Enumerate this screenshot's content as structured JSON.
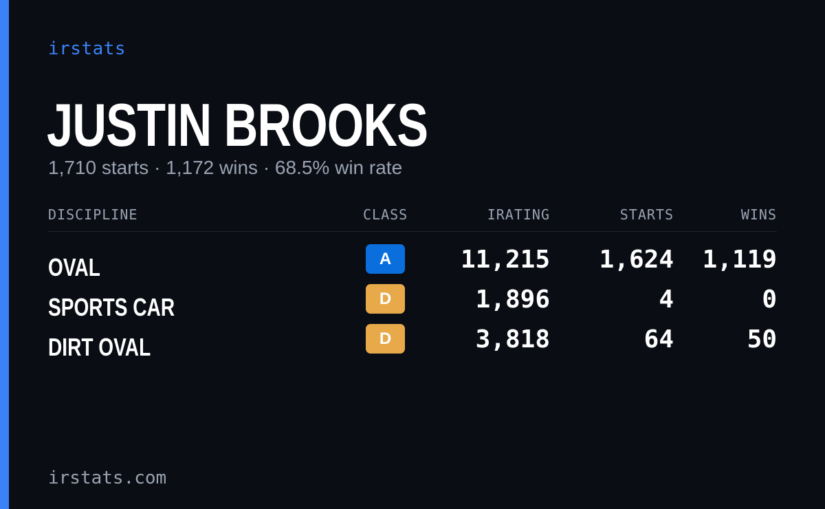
{
  "brand": "irstats",
  "player": {
    "name": "JUSTIN BROOKS",
    "summary": "1,710 starts · 1,172 wins · 68.5% win rate"
  },
  "table": {
    "headers": {
      "discipline": "DISCIPLINE",
      "class": "CLASS",
      "irating": "IRATING",
      "starts": "STARTS",
      "wins": "WINS"
    },
    "rows": [
      {
        "discipline": "OVAL",
        "class": "A",
        "class_color": "#0a6fdc",
        "irating": "11,215",
        "starts": "1,624",
        "wins": "1,119"
      },
      {
        "discipline": "SPORTS CAR",
        "class": "D",
        "class_color": "#e8a94b",
        "irating": "1,896",
        "starts": "4",
        "wins": "0"
      },
      {
        "discipline": "DIRT OVAL",
        "class": "D",
        "class_color": "#e8a94b",
        "irating": "3,818",
        "starts": "64",
        "wins": "50"
      }
    ]
  },
  "footer": {
    "url": "irstats.com"
  },
  "colors": {
    "accent": "#3b82f6",
    "background": "#0a0d14",
    "muted_text": "#9aa3b2"
  }
}
